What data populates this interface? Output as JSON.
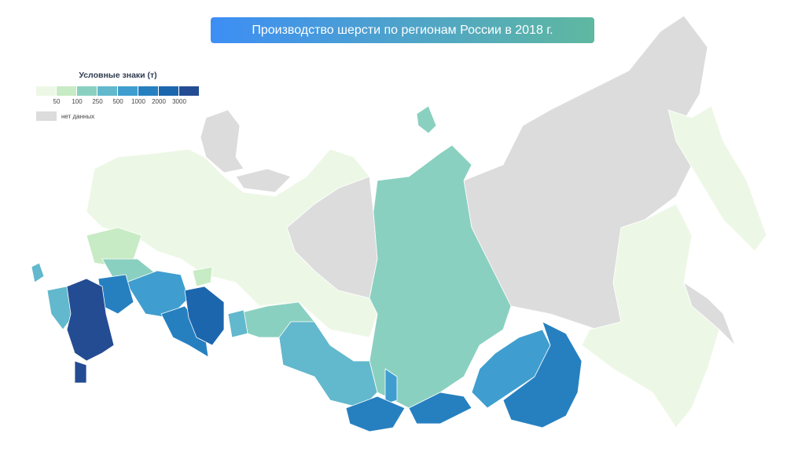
{
  "title": "Производство шерсти по регионам России в 2018 г.",
  "legend": {
    "title": "Условные знаки (т)",
    "colors": [
      "#edf7e6",
      "#c7ebc4",
      "#8ad0c0",
      "#62b8cc",
      "#3f9ecf",
      "#2680c0",
      "#1c66ae",
      "#244c93"
    ],
    "thresholds": [
      50,
      100,
      250,
      500,
      1000,
      2000,
      3000
    ],
    "no_data": {
      "label": "нет данных",
      "color": "#dcdcdc"
    }
  }
}
